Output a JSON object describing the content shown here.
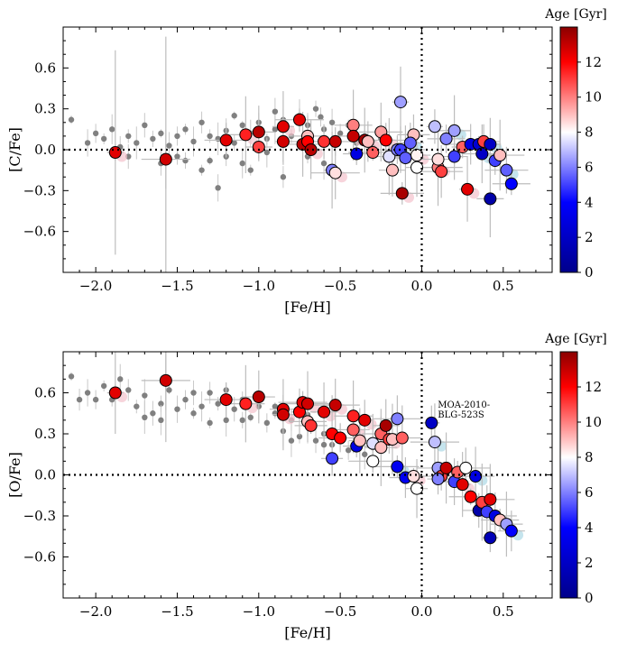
{
  "chart_data": [
    {
      "type": "scatter",
      "xlabel": "[Fe/H]",
      "ylabel": "[C/Fe]",
      "xlim": [
        -2.2,
        0.8
      ],
      "ylim": [
        -0.9,
        0.9
      ],
      "xticks": [
        "−2.0",
        "−1.5",
        "−1.0",
        "−0.5",
        "0.0",
        "0.5"
      ],
      "yticks": [
        "−0.6",
        "−0.3",
        "0.0",
        "0.3",
        "0.6"
      ],
      "colorbar": {
        "title": "Age [Gyr]",
        "range": [
          0,
          14
        ],
        "ticks": [
          "0",
          "2",
          "4",
          "6",
          "8",
          "10",
          "12"
        ]
      },
      "reference_lines": {
        "x": 0.0,
        "y": 0.0
      },
      "background_points": [
        [
          -2.15,
          0.22
        ],
        [
          -2.05,
          0.05
        ],
        [
          -2.0,
          0.12
        ],
        [
          -1.95,
          0.08
        ],
        [
          -1.9,
          0.15
        ],
        [
          -1.85,
          0.02
        ],
        [
          -1.8,
          0.1
        ],
        [
          -1.75,
          0.05
        ],
        [
          -1.7,
          0.18
        ],
        [
          -1.65,
          0.08
        ],
        [
          -1.6,
          0.12
        ],
        [
          -1.55,
          0.03
        ],
        [
          -1.5,
          0.1
        ],
        [
          -1.45,
          0.15
        ],
        [
          -1.4,
          0.06
        ],
        [
          -1.35,
          0.2
        ],
        [
          -1.3,
          0.1
        ],
        [
          -1.25,
          0.08
        ],
        [
          -1.2,
          0.14
        ],
        [
          -1.15,
          0.05
        ],
        [
          -1.1,
          0.18
        ],
        [
          -1.05,
          0.12
        ],
        [
          -1.0,
          0.2
        ],
        [
          -0.95,
          0.08
        ],
        [
          -0.9,
          0.15
        ],
        [
          -0.85,
          0.22
        ],
        [
          -0.8,
          0.1
        ],
        [
          -0.75,
          0.25
        ],
        [
          -0.7,
          0.18
        ],
        [
          -0.65,
          0.3
        ],
        [
          -0.6,
          0.15
        ],
        [
          -0.55,
          0.2
        ],
        [
          -0.5,
          0.12
        ],
        [
          -0.45,
          0.18
        ],
        [
          -0.4,
          0.05
        ],
        [
          -0.35,
          0.1
        ],
        [
          -0.3,
          0.02
        ],
        [
          -0.25,
          0.08
        ],
        [
          -1.6,
          -0.1
        ],
        [
          -1.5,
          -0.05
        ],
        [
          -1.3,
          -0.08
        ],
        [
          -1.25,
          -0.28
        ],
        [
          -1.2,
          -0.05
        ],
        [
          -1.05,
          -0.15
        ],
        [
          -0.95,
          -0.02
        ],
        [
          -0.85,
          -0.2
        ],
        [
          -0.7,
          -0.05
        ],
        [
          -0.6,
          -0.1
        ],
        [
          -1.8,
          -0.05
        ],
        [
          -1.45,
          -0.08
        ],
        [
          -1.15,
          0.25
        ],
        [
          -0.9,
          0.28
        ],
        [
          -0.62,
          0.24
        ],
        [
          -1.35,
          -0.15
        ],
        [
          -1.1,
          -0.1
        ]
      ],
      "highlight_points": [
        [
          -1.88,
          -0.02,
          12.5
        ],
        [
          -1.57,
          -0.07,
          12.8
        ],
        [
          -1.2,
          0.07,
          12.5
        ],
        [
          -1.08,
          0.11,
          11.5
        ],
        [
          -1.0,
          0.13,
          13.2
        ],
        [
          -1.0,
          0.02,
          11.0
        ],
        [
          -0.85,
          0.17,
          12.5
        ],
        [
          -0.85,
          0.06,
          12.8
        ],
        [
          -0.75,
          0.22,
          12.5
        ],
        [
          -0.73,
          0.04,
          13.2
        ],
        [
          -0.7,
          0.1,
          9.0
        ],
        [
          -0.7,
          0.06,
          12.0
        ],
        [
          -0.68,
          -0.0,
          13.2
        ],
        [
          -0.6,
          0.06,
          11.2
        ],
        [
          -0.55,
          -0.15,
          6.0
        ],
        [
          -0.53,
          -0.17,
          8.5
        ],
        [
          -0.53,
          0.06,
          13.0
        ],
        [
          -0.42,
          0.18,
          10.0
        ],
        [
          -0.42,
          0.1,
          13.0
        ],
        [
          -0.4,
          -0.03,
          3.0
        ],
        [
          -0.35,
          0.07,
          13.5
        ],
        [
          -0.33,
          0.06,
          9.0
        ],
        [
          -0.3,
          -0.02,
          10.5
        ],
        [
          -0.25,
          0.13,
          9.5
        ],
        [
          -0.22,
          0.07,
          12.0
        ],
        [
          -0.2,
          -0.05,
          7.5
        ],
        [
          -0.18,
          -0.15,
          9.0
        ],
        [
          -0.15,
          0.0,
          6.0
        ],
        [
          -0.13,
          0.35,
          6.5
        ],
        [
          -0.13,
          0.0,
          5.0
        ],
        [
          -0.12,
          -0.32,
          13.5
        ],
        [
          -0.1,
          -0.06,
          5.5
        ],
        [
          -0.05,
          0.11,
          9.0
        ],
        [
          -0.03,
          -0.04,
          8.2
        ],
        [
          -0.03,
          -0.13,
          8.0
        ],
        [
          0.08,
          0.17,
          7.0
        ],
        [
          0.1,
          -0.13,
          10.0
        ],
        [
          0.12,
          -0.16,
          11.0
        ],
        [
          0.15,
          0.08,
          6.0
        ],
        [
          0.2,
          0.14,
          6.5
        ],
        [
          0.2,
          -0.05,
          5.0
        ],
        [
          0.25,
          0.02,
          10.5
        ],
        [
          0.28,
          -0.29,
          12.5
        ],
        [
          0.3,
          0.04,
          3.0
        ],
        [
          0.35,
          0.04,
          2.5
        ],
        [
          0.37,
          -0.03,
          2.0
        ],
        [
          0.38,
          0.06,
          11.0
        ],
        [
          0.42,
          -0.36,
          1.0
        ],
        [
          0.42,
          0.04,
          2.0
        ],
        [
          0.45,
          -0.08,
          5.0
        ],
        [
          0.48,
          -0.04,
          9.0
        ],
        [
          0.52,
          -0.15,
          5.5
        ],
        [
          0.55,
          -0.25,
          4.0
        ],
        [
          0.1,
          -0.07,
          8.5
        ],
        [
          -0.07,
          0.05,
          5.5
        ]
      ]
    },
    {
      "type": "scatter",
      "xlabel": "[Fe/H]",
      "ylabel": "[O/Fe]",
      "xlim": [
        -2.2,
        0.8
      ],
      "ylim": [
        -0.9,
        0.9
      ],
      "xticks": [
        "−2.0",
        "−1.5",
        "−1.0",
        "−0.5",
        "0.0",
        "0.5"
      ],
      "yticks": [
        "−0.6",
        "−0.3",
        "0.0",
        "0.3",
        "0.6"
      ],
      "colorbar": {
        "title": "Age [Gyr]",
        "range": [
          0,
          14
        ],
        "ticks": [
          "0",
          "2",
          "4",
          "6",
          "8",
          "10",
          "12"
        ]
      },
      "reference_lines": {
        "x": 0.0,
        "y": 0.0
      },
      "annotation": {
        "text_line1": "MOA-2010-",
        "text_line2": "BLG-523S",
        "x": 0.06,
        "y": 0.38
      },
      "background_points": [
        [
          -2.15,
          0.72
        ],
        [
          -2.05,
          0.6
        ],
        [
          -2.0,
          0.55
        ],
        [
          -1.95,
          0.65
        ],
        [
          -1.85,
          0.7
        ],
        [
          -1.8,
          0.62
        ],
        [
          -1.75,
          0.5
        ],
        [
          -1.7,
          0.58
        ],
        [
          -1.65,
          0.45
        ],
        [
          -1.6,
          0.52
        ],
        [
          -1.55,
          0.62
        ],
        [
          -1.5,
          0.48
        ],
        [
          -1.45,
          0.55
        ],
        [
          -1.4,
          0.45
        ],
        [
          -1.35,
          0.5
        ],
        [
          -1.3,
          0.6
        ],
        [
          -1.25,
          0.52
        ],
        [
          -1.2,
          0.4
        ],
        [
          -1.15,
          0.48
        ],
        [
          -1.1,
          0.55
        ],
        [
          -1.05,
          0.42
        ],
        [
          -1.0,
          0.5
        ],
        [
          -0.95,
          0.38
        ],
        [
          -0.9,
          0.45
        ],
        [
          -0.85,
          0.32
        ],
        [
          -0.8,
          0.4
        ],
        [
          -0.75,
          0.28
        ],
        [
          -0.7,
          0.35
        ],
        [
          -0.65,
          0.25
        ],
        [
          -0.6,
          0.3
        ],
        [
          -0.55,
          0.22
        ],
        [
          -0.5,
          0.28
        ],
        [
          -0.45,
          0.18
        ],
        [
          -0.4,
          0.25
        ],
        [
          -0.35,
          0.15
        ],
        [
          -0.3,
          0.2
        ],
        [
          -1.9,
          0.55
        ],
        [
          -1.7,
          0.42
        ],
        [
          -1.4,
          0.6
        ],
        [
          -1.1,
          0.4
        ],
        [
          -0.9,
          0.5
        ],
        [
          -0.7,
          0.44
        ],
        [
          -0.6,
          0.22
        ],
        [
          -1.3,
          0.38
        ],
        [
          -1.6,
          0.4
        ],
        [
          -2.1,
          0.55
        ],
        [
          -1.2,
          0.62
        ],
        [
          -0.8,
          0.25
        ]
      ],
      "highlight_points": [
        [
          -1.88,
          0.6,
          12.5
        ],
        [
          -1.57,
          0.69,
          12.8
        ],
        [
          -1.2,
          0.55,
          12.5
        ],
        [
          -1.08,
          0.52,
          11.5
        ],
        [
          -1.0,
          0.57,
          13.2
        ],
        [
          -0.85,
          0.48,
          12.5
        ],
        [
          -0.85,
          0.44,
          12.8
        ],
        [
          -0.75,
          0.46,
          12.0
        ],
        [
          -0.73,
          0.53,
          12.5
        ],
        [
          -0.7,
          0.52,
          12.8
        ],
        [
          -0.7,
          0.39,
          9.0
        ],
        [
          -0.68,
          0.36,
          11.2
        ],
        [
          -0.6,
          0.46,
          12.5
        ],
        [
          -0.55,
          0.12,
          5.0
        ],
        [
          -0.55,
          0.3,
          12.0
        ],
        [
          -0.53,
          0.51,
          13.0
        ],
        [
          -0.5,
          0.27,
          12.0
        ],
        [
          -0.42,
          0.43,
          11.5
        ],
        [
          -0.42,
          0.33,
          10.5
        ],
        [
          -0.4,
          0.21,
          3.0
        ],
        [
          -0.38,
          0.25,
          9.0
        ],
        [
          -0.35,
          0.4,
          12.5
        ],
        [
          -0.3,
          0.1,
          8.0
        ],
        [
          -0.3,
          0.23,
          7.5
        ],
        [
          -0.25,
          0.3,
          10.5
        ],
        [
          -0.25,
          0.2,
          9.0
        ],
        [
          -0.22,
          0.36,
          13.5
        ],
        [
          -0.2,
          0.26,
          11.0
        ],
        [
          -0.18,
          0.26,
          9.0
        ],
        [
          -0.15,
          0.41,
          6.0
        ],
        [
          -0.15,
          0.06,
          3.5
        ],
        [
          -0.12,
          0.27,
          10.5
        ],
        [
          -0.1,
          -0.02,
          3.5
        ],
        [
          -0.05,
          -0.01,
          8.5
        ],
        [
          -0.03,
          -0.1,
          8.0
        ],
        [
          0.06,
          0.38,
          2.0
        ],
        [
          0.08,
          0.24,
          7.0
        ],
        [
          0.1,
          0.05,
          6.5
        ],
        [
          0.12,
          -0.01,
          11.0
        ],
        [
          0.15,
          0.05,
          13.0
        ],
        [
          0.2,
          -0.05,
          5.0
        ],
        [
          0.22,
          0.02,
          10.5
        ],
        [
          0.25,
          -0.07,
          12.5
        ],
        [
          0.27,
          0.05,
          8.0
        ],
        [
          0.3,
          -0.16,
          12.0
        ],
        [
          0.33,
          -0.01,
          3.0
        ],
        [
          0.35,
          -0.26,
          1.0
        ],
        [
          0.37,
          -0.2,
          11.0
        ],
        [
          0.4,
          -0.27,
          5.0
        ],
        [
          0.42,
          -0.46,
          1.5
        ],
        [
          0.42,
          -0.18,
          12.5
        ],
        [
          0.45,
          -0.3,
          3.0
        ],
        [
          0.48,
          -0.33,
          9.0
        ],
        [
          0.52,
          -0.36,
          6.5
        ],
        [
          0.55,
          -0.41,
          4.0
        ],
        [
          0.1,
          -0.03,
          6.0
        ]
      ]
    }
  ]
}
